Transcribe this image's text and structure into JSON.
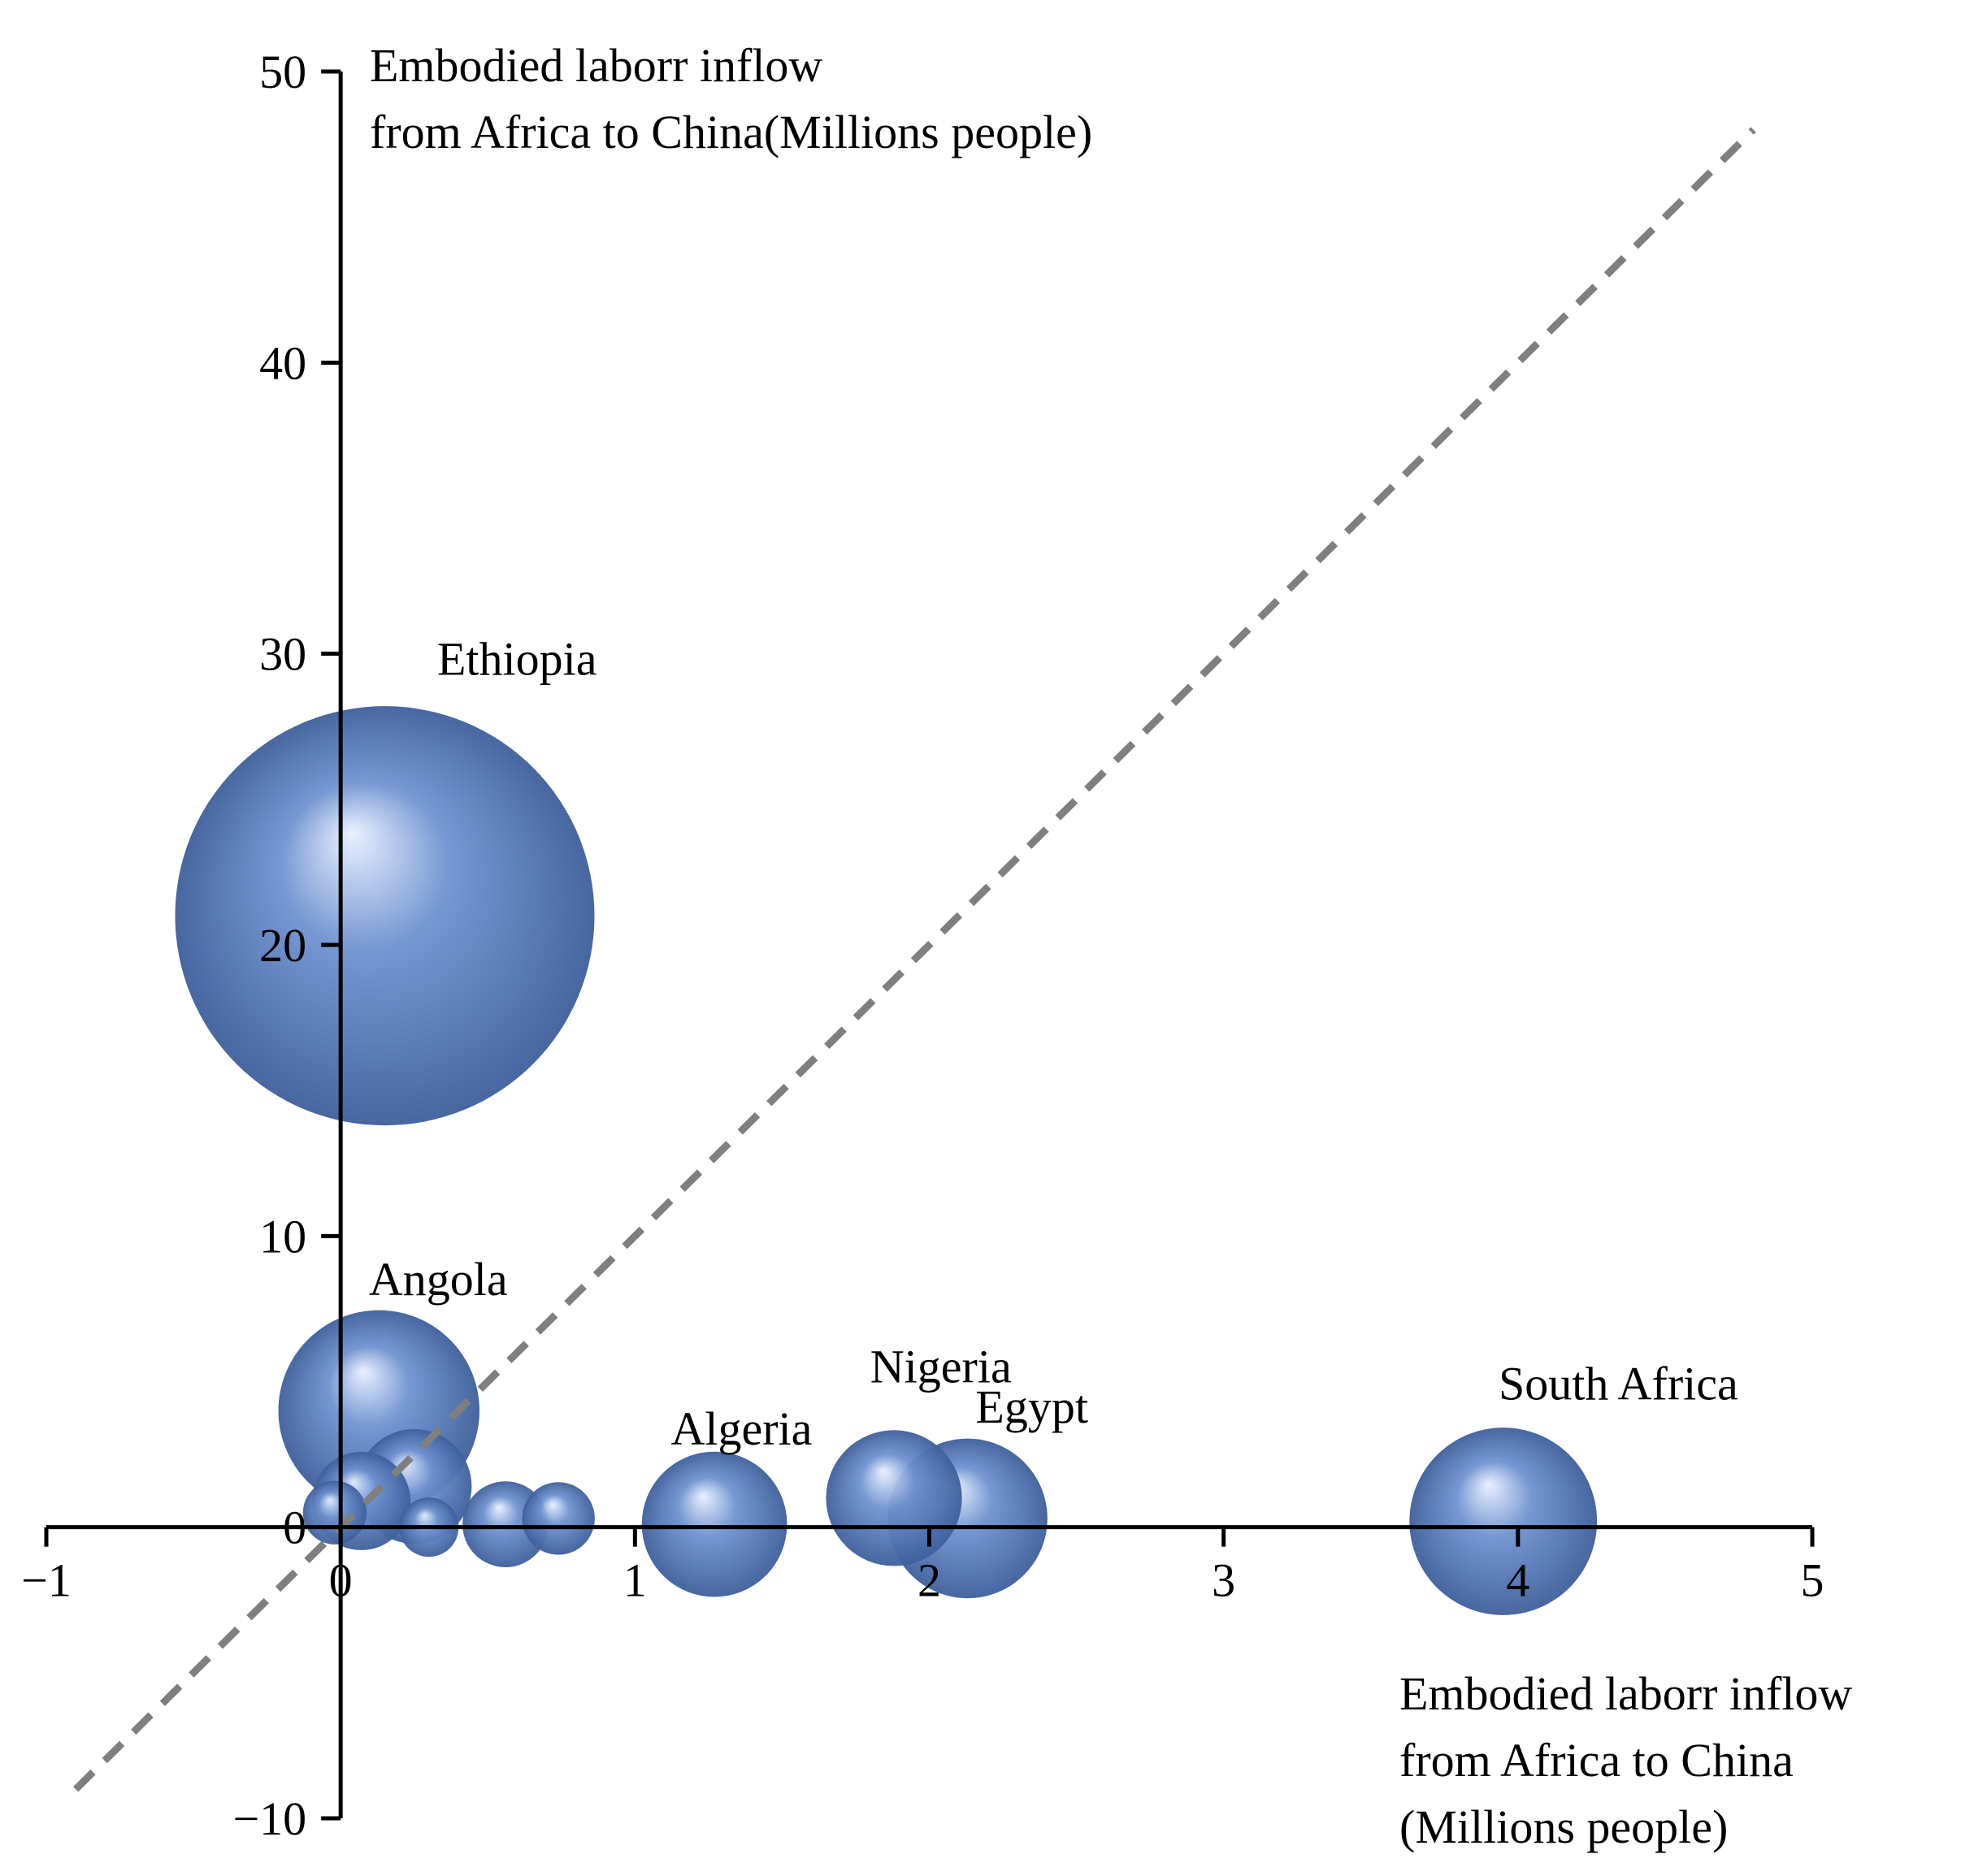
{
  "chart_data": {
    "type": "scatter",
    "subtype": "bubble",
    "y_axis_title_lines": [
      "Embodied laborr inflow",
      "from Africa to China(Millions  people)"
    ],
    "x_axis_title_lines": [
      "Embodied laborr inflow",
      "from Africa to China",
      "(Millions  people)"
    ],
    "xlim": [
      -1,
      5
    ],
    "ylim": [
      -10,
      50
    ],
    "x_ticks": [
      -1,
      0,
      1,
      2,
      3,
      4,
      5
    ],
    "y_ticks": [
      -10,
      0,
      10,
      20,
      30,
      40,
      50
    ],
    "x_tick_labels": [
      "−1",
      "0",
      "1",
      "2",
      "3",
      "4",
      "5"
    ],
    "y_tick_labels": [
      "−10",
      "0",
      "10",
      "20",
      "30",
      "40",
      "50"
    ],
    "reference_line": {
      "style": "dashed",
      "from": [
        -0.9,
        -9.0
      ],
      "to": [
        4.8,
        48.0
      ]
    },
    "grid": false,
    "legend": "none",
    "bubble_color": "#6f92d0",
    "bubble_dark_color": "#3e5f9c",
    "bubble_highlight_color": "#e8f0ff",
    "reference_line_color": "#7f7f7f",
    "points": [
      {
        "name": "Ethiopia",
        "label": "Ethiopia",
        "x": 0.15,
        "y": 21.0,
        "size": 100
      },
      {
        "name": "Angola",
        "label": "Angola",
        "x": 0.13,
        "y": 4.0,
        "size": 23
      },
      {
        "name": "South Africa",
        "label": "South Africa",
        "x": 3.95,
        "y": 0.2,
        "size": 20
      },
      {
        "name": "Egypt",
        "label": "Egypt",
        "x": 2.13,
        "y": 0.3,
        "size": 14.5
      },
      {
        "name": "Nigeria",
        "label": "Nigeria",
        "x": 1.88,
        "y": 1.0,
        "size": 10.5
      },
      {
        "name": "Algeria",
        "label": "Algeria",
        "x": 1.27,
        "y": 0.1,
        "size": 12
      },
      {
        "name": "",
        "label": "",
        "x": 0.25,
        "y": 1.4,
        "size": 7.5
      },
      {
        "name": "",
        "label": "",
        "x": 0.07,
        "y": 0.9,
        "size": 5.5
      },
      {
        "name": "",
        "label": "",
        "x": -0.02,
        "y": 0.5,
        "size": 2.3
      },
      {
        "name": "",
        "label": "",
        "x": 0.56,
        "y": 0.1,
        "size": 4.2
      },
      {
        "name": "",
        "label": "",
        "x": 0.74,
        "y": 0.3,
        "size": 3.0
      },
      {
        "name": "",
        "label": "",
        "x": 0.3,
        "y": 0.0,
        "size": 2.0
      }
    ]
  }
}
